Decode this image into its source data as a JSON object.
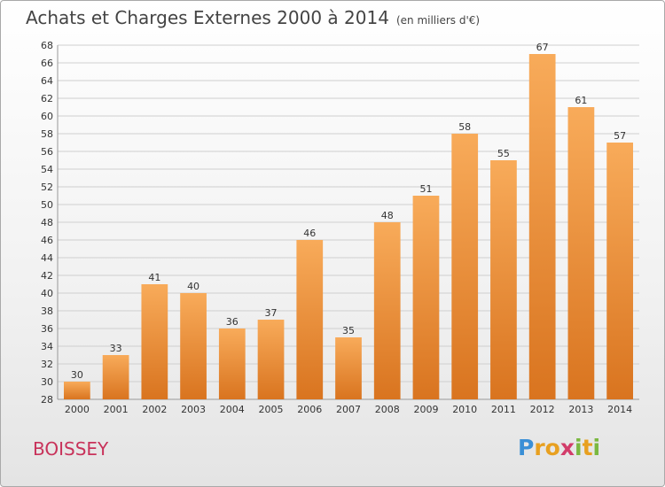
{
  "title": "Achats et Charges Externes 2000 à 2014",
  "unit": "(en milliers d'€)",
  "commune": "BOISSEY",
  "logo": {
    "letters": [
      {
        "ch": "P",
        "color": "#3a8fd6"
      },
      {
        "ch": "r",
        "color": "#e8a020"
      },
      {
        "ch": "o",
        "color": "#e8a020"
      },
      {
        "ch": "x",
        "color": "#d23c6a"
      },
      {
        "ch": "i",
        "color": "#7ab840"
      },
      {
        "ch": "t",
        "color": "#e8a020"
      },
      {
        "ch": "i",
        "color": "#7ab840"
      }
    ]
  },
  "chart_data": {
    "type": "bar",
    "title": "Achats et Charges Externes 2000 à 2014",
    "subtitle": "(en milliers d'€)",
    "xlabel": "",
    "ylabel": "",
    "categories": [
      "2000",
      "2001",
      "2002",
      "2003",
      "2004",
      "2005",
      "2006",
      "2007",
      "2008",
      "2009",
      "2010",
      "2011",
      "2012",
      "2013",
      "2014"
    ],
    "values": [
      30,
      33,
      41,
      40,
      36,
      37,
      46,
      35,
      48,
      51,
      58,
      55,
      67,
      61,
      57
    ],
    "ylim": [
      28,
      68
    ],
    "ytick_step": 2,
    "grid": true,
    "bar_color_top": "#f8ab5a",
    "bar_color_bottom": "#d9741f"
  }
}
